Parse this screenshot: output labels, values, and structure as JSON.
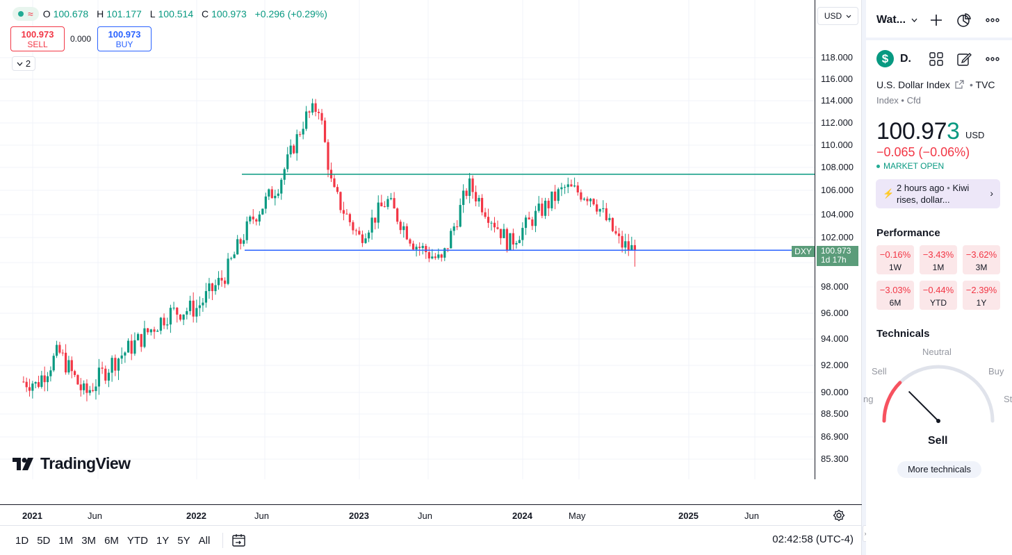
{
  "legend": {
    "status_icon": "approx-icon",
    "ohlc": [
      {
        "key": "O",
        "value": "100.678"
      },
      {
        "key": "H",
        "value": "101.177"
      },
      {
        "key": "L",
        "value": "100.514"
      },
      {
        "key": "C",
        "value": "100.973"
      }
    ],
    "change": "+0.296 (+0.29%)"
  },
  "trade": {
    "sell_price": "100.973",
    "sell_label": "SELL",
    "spread": "0.000",
    "buy_price": "100.973",
    "buy_label": "BUY"
  },
  "indicators_collapsed_count": "2",
  "watermark": "TradingView",
  "currency": "USD",
  "price_scale": [
    "118.000",
    "116.000",
    "114.000",
    "112.000",
    "110.000",
    "108.000",
    "106.000",
    "104.000",
    "102.000",
    "98.000",
    "96.000",
    "94.000",
    "92.000",
    "90.000",
    "88.500",
    "86.900",
    "85.300"
  ],
  "symbol_tag": "DXY",
  "last_price_tag": {
    "price": "100.973",
    "countdown": "1d 17h"
  },
  "time_scale": [
    {
      "label": "2021",
      "year": true
    },
    {
      "label": "Jun",
      "year": false
    },
    {
      "label": "2022",
      "year": true
    },
    {
      "label": "Jun",
      "year": false
    },
    {
      "label": "2023",
      "year": true
    },
    {
      "label": "Jun",
      "year": false
    },
    {
      "label": "2024",
      "year": true
    },
    {
      "label": "May",
      "year": false
    },
    {
      "label": "2025",
      "year": true
    },
    {
      "label": "Jun",
      "year": false
    }
  ],
  "ranges": [
    "1D",
    "5D",
    "1M",
    "3M",
    "6M",
    "YTD",
    "1Y",
    "5Y",
    "All"
  ],
  "clock": "02:42:58 (UTC-4)",
  "colors": {
    "up": "#089981",
    "down": "#f23645",
    "resistance": "#089981",
    "support": "#2962ff"
  },
  "chart_data": {
    "type": "candlestick",
    "symbol": "DXY",
    "interval": "weekly",
    "ylim": [
      84.5,
      120
    ],
    "resistance_level": 107.4,
    "support_level": 100.97,
    "series": [
      {
        "date": "2021-01",
        "close": 90.2
      },
      {
        "date": "2021-03",
        "close": 93.0
      },
      {
        "date": "2021-05",
        "close": 89.8
      },
      {
        "date": "2021-07",
        "close": 92.2
      },
      {
        "date": "2021-09",
        "close": 94.0
      },
      {
        "date": "2021-11",
        "close": 96.0
      },
      {
        "date": "2022-01",
        "close": 96.4
      },
      {
        "date": "2022-03",
        "close": 98.8
      },
      {
        "date": "2022-05",
        "close": 103.5
      },
      {
        "date": "2022-07",
        "close": 106.5
      },
      {
        "date": "2022-09",
        "close": 112.5
      },
      {
        "date": "2022-10",
        "close": 113.5
      },
      {
        "date": "2022-11",
        "close": 106.0
      },
      {
        "date": "2023-01",
        "close": 102.0
      },
      {
        "date": "2023-03",
        "close": 105.2
      },
      {
        "date": "2023-05",
        "close": 101.5
      },
      {
        "date": "2023-07",
        "close": 100.0
      },
      {
        "date": "2023-09",
        "close": 106.5
      },
      {
        "date": "2023-12",
        "close": 101.5
      },
      {
        "date": "2024-02",
        "close": 104.0
      },
      {
        "date": "2024-04",
        "close": 106.2
      },
      {
        "date": "2024-06",
        "close": 105.5
      },
      {
        "date": "2024-08",
        "close": 101.5
      },
      {
        "date": "2024-09",
        "close": 100.97
      }
    ]
  },
  "watchlist": {
    "title": "Wat...",
    "symbol_letter": "$",
    "symbol_short": "D.",
    "name": "U.S. Dollar Index",
    "exchange": "TVC",
    "type": "Index",
    "subtype": "Cfd",
    "price_main": "100.97",
    "price_last_digit": "3",
    "price_unit": "USD",
    "change": "−0.065 (−0.06%)",
    "market_status": "MARKET OPEN",
    "news_time": "2 hours ago",
    "news_headline": "Kiwi",
    "news_headline2": "rises, dollar..."
  },
  "performance": {
    "title": "Performance",
    "cells": [
      {
        "value": "−0.16%",
        "label": "1W"
      },
      {
        "value": "−3.43%",
        "label": "1M"
      },
      {
        "value": "−3.62%",
        "label": "3M"
      },
      {
        "value": "−3.03%",
        "label": "6M"
      },
      {
        "value": "−0.44%",
        "label": "YTD"
      },
      {
        "value": "−2.39%",
        "label": "1Y"
      }
    ]
  },
  "technicals": {
    "title": "Technicals",
    "neutral": "Neutral",
    "sell": "Sell",
    "buy": "Buy",
    "strong_sell_partial": "ng",
    "strong_buy_partial": "St",
    "result": "Sell",
    "gauge_value": 0.25,
    "more_button": "More technicals"
  }
}
